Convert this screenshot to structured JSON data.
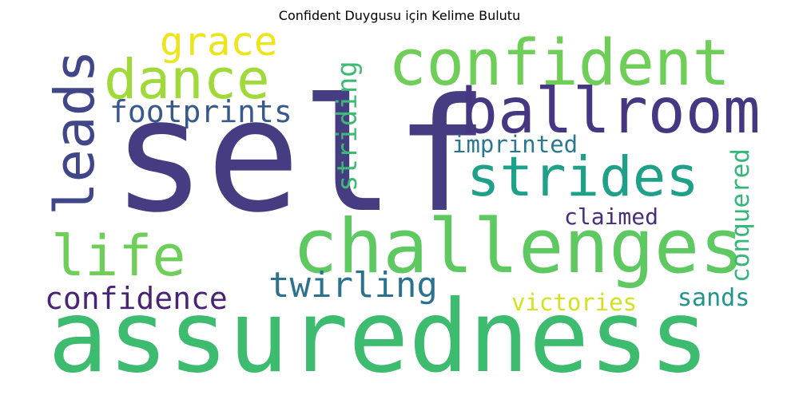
{
  "title": "Confident Duygusu için Kelime Bulutu",
  "words": [
    {
      "text": "self",
      "color": "#453c82"
    },
    {
      "text": "assuredness",
      "color": "#3dbb6f"
    },
    {
      "text": "challenges",
      "color": "#5ec961"
    },
    {
      "text": "confident",
      "color": "#6ece58"
    },
    {
      "text": "ballroom",
      "color": "#453781"
    },
    {
      "text": "strides",
      "color": "#1fa088"
    },
    {
      "text": "dance",
      "color": "#9fda3a"
    },
    {
      "text": "leads",
      "color": "#404688"
    },
    {
      "text": "life",
      "color": "#6ece58"
    },
    {
      "text": "grace",
      "color": "#ede51b"
    },
    {
      "text": "twirling",
      "color": "#2c728e"
    },
    {
      "text": "footprints",
      "color": "#38598c"
    },
    {
      "text": "confidence",
      "color": "#482475"
    },
    {
      "text": "striding",
      "color": "#3dbb75"
    },
    {
      "text": "imprinted",
      "color": "#2a788e"
    },
    {
      "text": "claimed",
      "color": "#472e7c"
    },
    {
      "text": "conquered",
      "color": "#35b779"
    },
    {
      "text": "victories",
      "color": "#d2e21b"
    },
    {
      "text": "sands",
      "color": "#1f968b"
    }
  ]
}
